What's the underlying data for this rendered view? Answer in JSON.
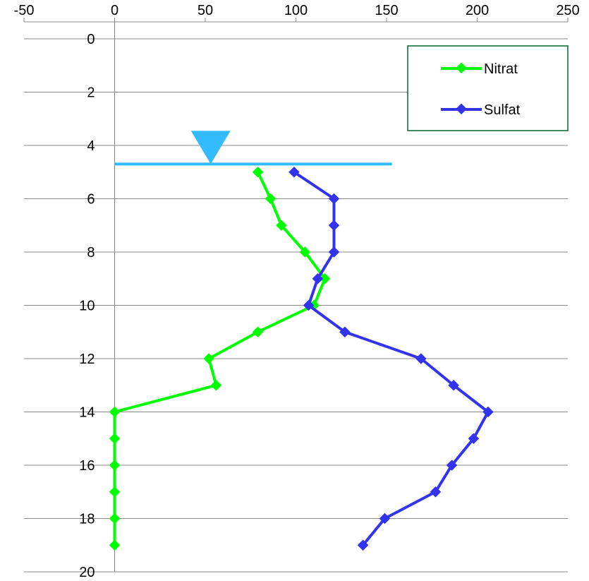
{
  "chart_data": {
    "type": "line",
    "title": "",
    "xlabel": "",
    "ylabel": "",
    "xlim": [
      -50,
      250
    ],
    "ylim": [
      0,
      20
    ],
    "y_inverted": true,
    "x_axis_position": "top",
    "x_ticks": [
      "-50",
      "0",
      "50",
      "100",
      "150",
      "200",
      "250"
    ],
    "y_ticks": [
      "0",
      "2",
      "4",
      "6",
      "8",
      "10",
      "12",
      "14",
      "16",
      "18",
      "20"
    ],
    "grid": "horizontal",
    "legend_position": "top-right",
    "series": [
      {
        "name": "Nitrat",
        "color": "#00ff00",
        "marker": "diamond",
        "points": [
          [
            79,
            5
          ],
          [
            86,
            6
          ],
          [
            92,
            7
          ],
          [
            105,
            8
          ],
          [
            116,
            9
          ],
          [
            110,
            10
          ],
          [
            79,
            11
          ],
          [
            52,
            12
          ],
          [
            56,
            13
          ],
          [
            0,
            14
          ],
          [
            0,
            15
          ],
          [
            0,
            16
          ],
          [
            0,
            17
          ],
          [
            0,
            18
          ],
          [
            0,
            19
          ]
        ]
      },
      {
        "name": "Sulfat",
        "color": "#3333ee",
        "marker": "diamond",
        "points": [
          [
            99,
            5
          ],
          [
            121,
            6
          ],
          [
            121,
            7
          ],
          [
            121,
            8
          ],
          [
            112,
            9
          ],
          [
            107,
            10
          ],
          [
            127,
            11
          ],
          [
            169,
            12
          ],
          [
            187,
            13
          ],
          [
            206,
            14
          ],
          [
            198,
            15
          ],
          [
            186,
            16
          ],
          [
            177,
            17
          ],
          [
            149,
            18
          ],
          [
            137,
            19
          ]
        ]
      }
    ],
    "water_table": {
      "depth": 4.7,
      "x_start": 0,
      "x_end": 153,
      "symbol_x": 53,
      "color": "#33bbff",
      "symbol": "inverted-triangle"
    }
  }
}
